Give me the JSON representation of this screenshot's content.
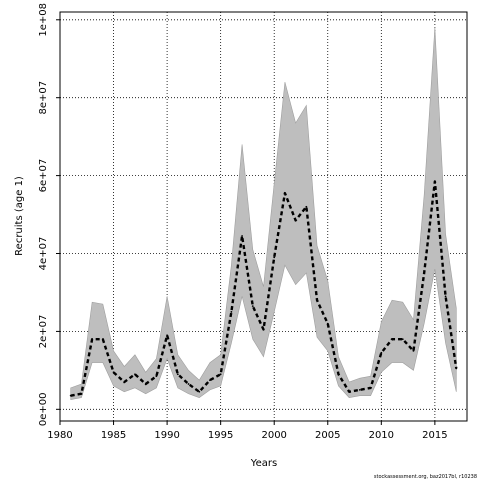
{
  "chart_data": {
    "type": "line",
    "title": "",
    "xlabel": "Years",
    "ylabel": "Recruits (age 1)",
    "xlim": [
      1980,
      2018
    ],
    "ylim": [
      -3000000,
      102000000
    ],
    "grid": true,
    "x": [
      1981,
      1982,
      1983,
      1984,
      1985,
      1986,
      1987,
      1988,
      1989,
      1990,
      1991,
      1992,
      1993,
      1994,
      1995,
      1996,
      1997,
      1998,
      1999,
      2000,
      2001,
      2002,
      2003,
      2004,
      2005,
      2006,
      2007,
      2008,
      2009,
      2010,
      2011,
      2012,
      2013,
      2014,
      2015,
      2016,
      2017
    ],
    "series": [
      {
        "values": [
          3500000,
          4000000,
          18000000,
          18000000,
          9500000,
          7000000,
          9000000,
          6500000,
          8500000,
          19000000,
          9000000,
          6500000,
          4500000,
          7500000,
          9000000,
          25000000,
          44500000,
          26500000,
          20500000,
          39000000,
          55500000,
          48500000,
          52000000,
          28000000,
          22000000,
          9000000,
          4500000,
          5000000,
          5500000,
          14500000,
          18000000,
          18000000,
          15000000,
          35000000,
          58500000,
          29000000,
          10500000
        ],
        "lower": [
          2500000,
          3000000,
          12000000,
          12000000,
          6000000,
          4500000,
          5500000,
          4000000,
          5500000,
          13000000,
          5500000,
          4000000,
          3000000,
          5000000,
          6000000,
          17000000,
          29000000,
          18000000,
          13500000,
          25000000,
          37000000,
          32000000,
          35000000,
          18500000,
          15000000,
          6000000,
          3000000,
          3500000,
          3500000,
          9500000,
          12000000,
          12000000,
          10000000,
          22000000,
          36000000,
          17000000,
          4500000
        ],
        "upper": [
          5500000,
          6500000,
          27500000,
          27000000,
          15000000,
          11000000,
          14000000,
          9500000,
          13000000,
          29000000,
          14000000,
          10000000,
          7500000,
          12000000,
          14000000,
          37000000,
          68000000,
          41000000,
          31500000,
          58000000,
          84000000,
          73500000,
          78000000,
          42000000,
          33000000,
          13500000,
          7000000,
          8000000,
          8500000,
          22500000,
          28000000,
          27500000,
          23000000,
          55000000,
          98000000,
          45000000,
          26000000
        ]
      }
    ],
    "xticks": [
      "1980",
      "1985",
      "1990",
      "1995",
      "2000",
      "2005",
      "2010",
      "2015"
    ],
    "yticks": [
      "0e+00",
      "2e+07",
      "4e+07",
      "6e+07",
      "8e+07",
      "1e+08"
    ],
    "colors": {
      "band": "#bebebe",
      "line": "#000000",
      "band_edge": "#9e9e9e"
    },
    "footnote": "stockassessment.org, baz2017bl, r10238"
  }
}
